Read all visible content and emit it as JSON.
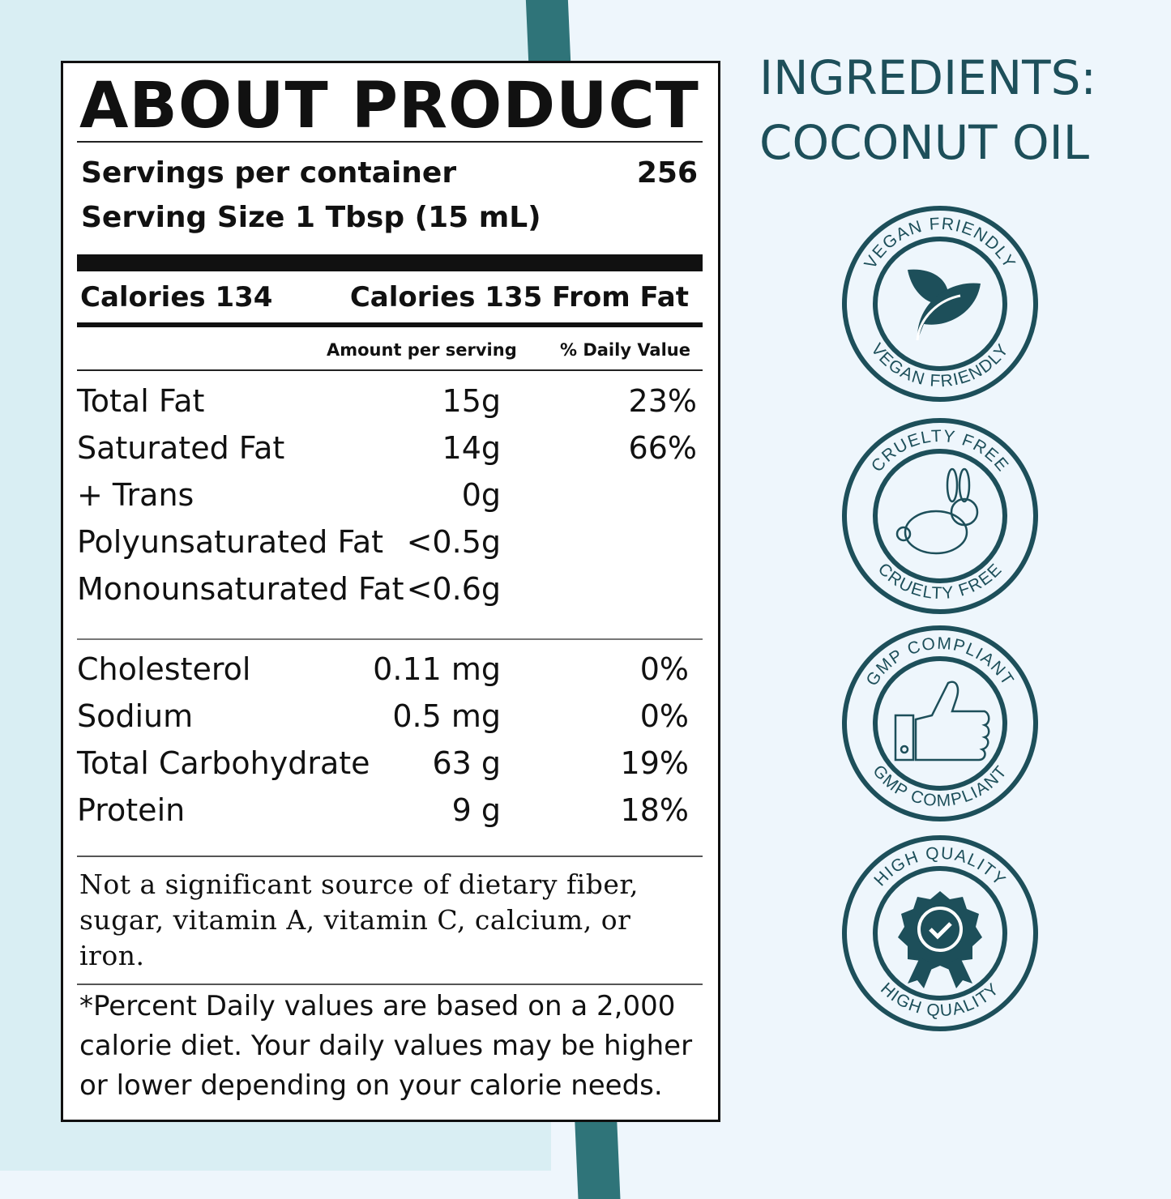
{
  "colors": {
    "accent": "#1d4f5a",
    "stripe": "#2f7479",
    "background_left": "#d9eef3",
    "background_right": "#eef6fc"
  },
  "label": {
    "title": "ABOUT PRODUCT",
    "servings_per_container_label": "Servings per container",
    "servings_per_container_value": "256",
    "serving_size": "Serving Size 1 Tbsp (15 mL)",
    "calories": "Calories 134",
    "calories_from_fat": "Calories 135 From Fat",
    "header_amount": "Amount per serving",
    "header_dv": "% Daily Value",
    "fats": [
      {
        "name": "Total Fat",
        "amount": "15g",
        "dv": "23%"
      },
      {
        "name": "Saturated Fat",
        "amount": "14g",
        "dv": "66%"
      },
      {
        "name": "+ Trans",
        "amount": "0g",
        "dv": ""
      },
      {
        "name": "Polyunsaturated Fat",
        "amount": "<0.5g",
        "dv": ""
      },
      {
        "name": "Monounsaturated Fat",
        "amount": "<0.6g",
        "dv": ""
      }
    ],
    "others": [
      {
        "name": "Cholesterol",
        "amount": "0.11 mg",
        "dv": "0%"
      },
      {
        "name": "Sodium",
        "amount": "0.5 mg",
        "dv": "0%"
      },
      {
        "name": "Total Carbohydrate",
        "amount": "63 g",
        "dv": "19%"
      },
      {
        "name": "Protein",
        "amount": "9 g",
        "dv": "18%"
      }
    ],
    "not_significant": "Not a significant source of dietary fiber, sugar, vitamin A, vitamin C, calcium, or iron.",
    "percent_note": "*Percent Daily values are based on a 2,000 calorie diet. Your daily values may be higher or lower depending on your calorie needs."
  },
  "ingredients": {
    "line1": "INGREDIENTS:",
    "line2": "COCONUT OIL"
  },
  "badges": [
    {
      "icon": "leaf-icon",
      "text": "VEGAN FRIENDLY"
    },
    {
      "icon": "rabbit-icon",
      "text": "CRUELTY FREE"
    },
    {
      "icon": "thumbs-up-icon",
      "text": "GMP COMPLIANT"
    },
    {
      "icon": "quality-seal-icon",
      "text": "HIGH QUALITY"
    }
  ]
}
